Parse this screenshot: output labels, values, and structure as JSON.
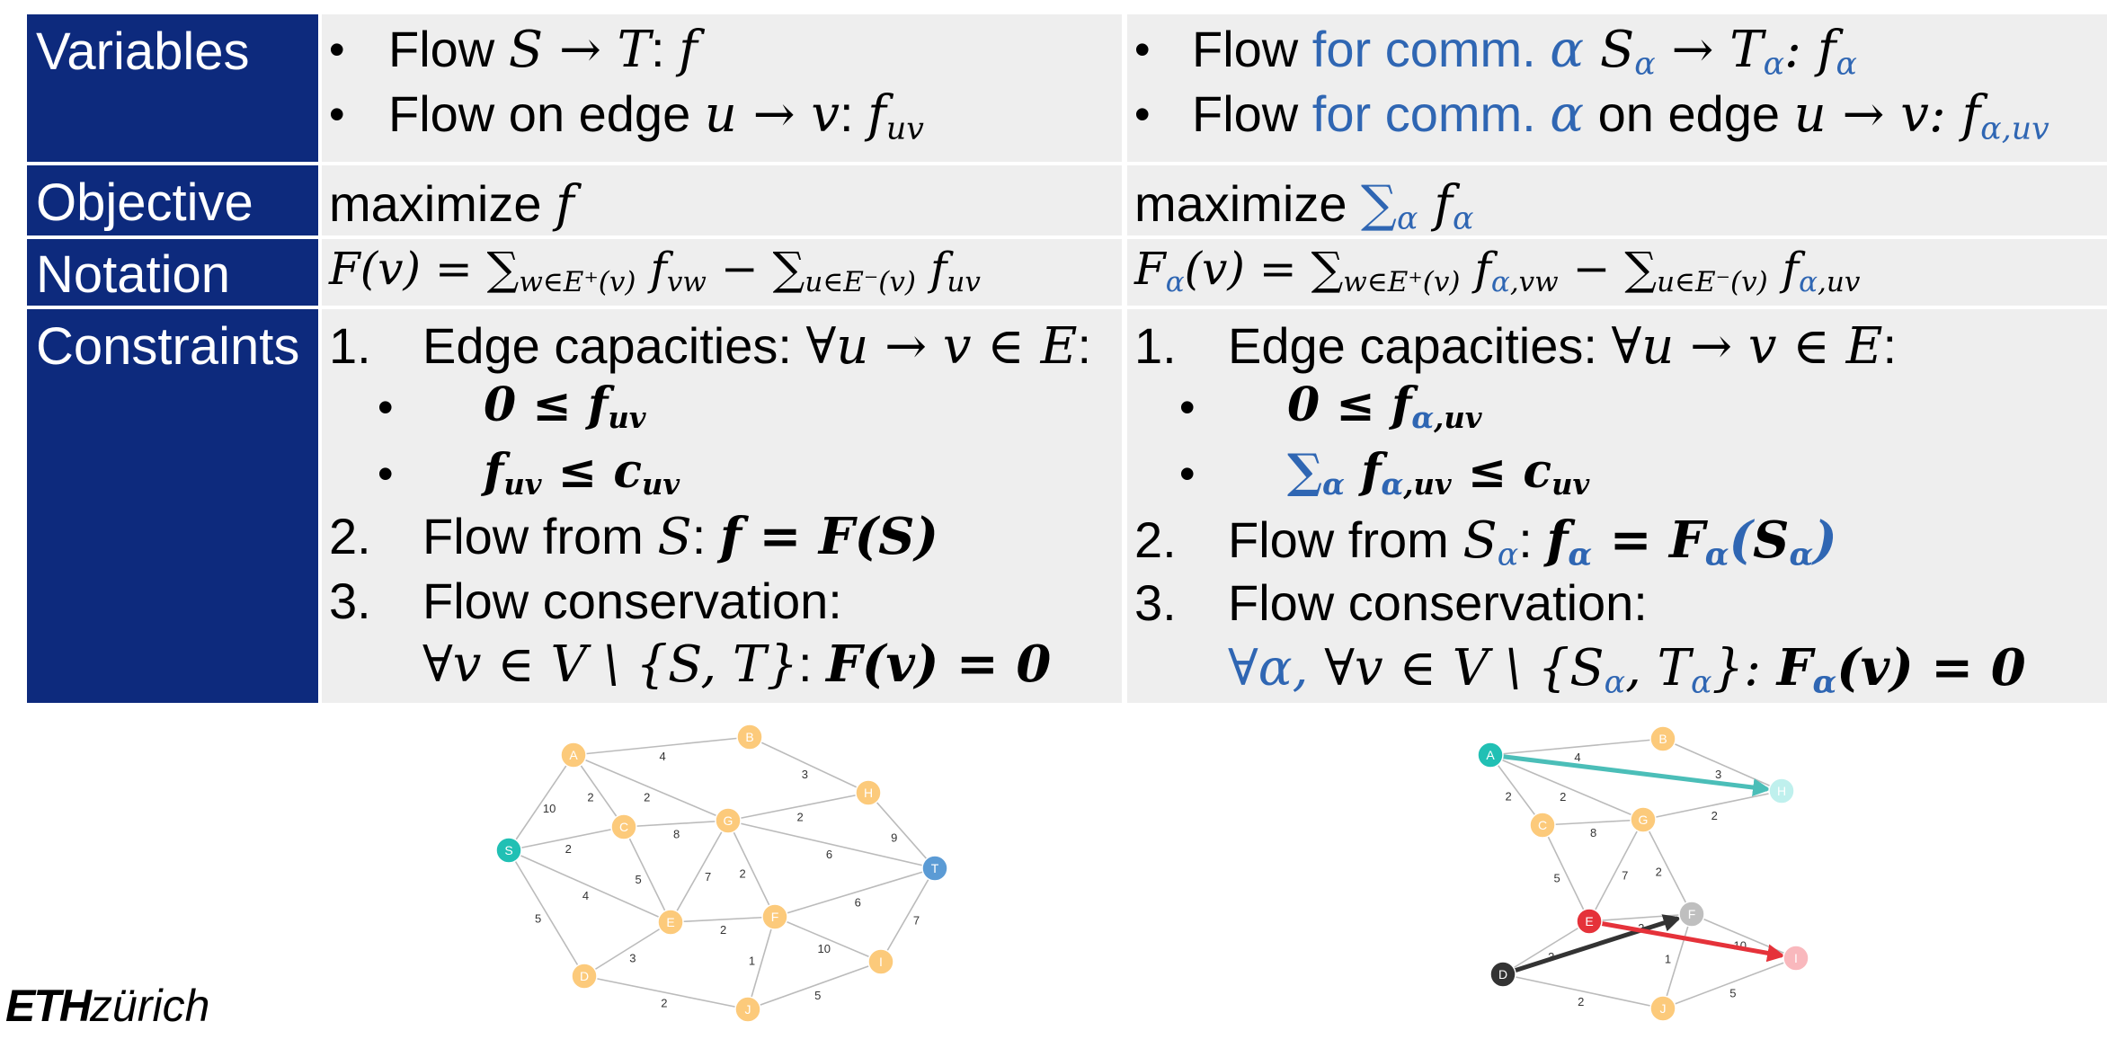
{
  "headers": {
    "variables": "Variables",
    "objective": "Objective",
    "notation": "Notation",
    "constraints": "Constraints"
  },
  "bullet": "•",
  "left": {
    "var1_text": "Flow ",
    "var1_math": "S → T",
    "var1_colon": ":  ",
    "var1_f": "f",
    "var2_text": "Flow on edge ",
    "var2_math": "u → v",
    "var2_colon": ":  ",
    "var2_f": "f",
    "var2_sub": "uv",
    "obj_text": "maximize ",
    "obj_f": "f",
    "notation": "F(v) = ∑",
    "notation_sub1": "w∈E⁺(v)",
    "notation_mid": " f",
    "notation_sub2": "vw",
    "notation_minus": " − ∑",
    "notation_sub3": "u∈E⁻(v)",
    "notation_f2": " f",
    "notation_sub4": "uv",
    "c1_num": "1.",
    "c1_text": "Edge capacities: ",
    "c1_math": "∀u → v ∈ E",
    "c1_colon": ":",
    "c1a": "0 ≤ f",
    "c1a_sub": "uv",
    "c1b_f": "f",
    "c1b_sub": "uv",
    "c1b_rest": " ≤ c",
    "c1b_sub2": "uv",
    "c2_num": "2.",
    "c2_text": "Flow from ",
    "c2_S": "S",
    "c2_colon": ": ",
    "c2_math": "f = F(S)",
    "c3_num": "3.",
    "c3_text": "Flow conservation:",
    "c3b_math": "∀v ∈ V \\ {S, T}",
    "c3b_colon": ": ",
    "c3b_bold": "F(v) = 0"
  },
  "right": {
    "var1_text": "Flow ",
    "var1_blue": "for comm. ",
    "var1_alpha": "α",
    "var1_S": "  S",
    "var1_sub_a": "α",
    "var1_arrow": " → T",
    "var1_sub_b": "α",
    "var1_colon": ":  f",
    "var1_sub_c": "α",
    "var2_text": "Flow ",
    "var2_blue": "for comm. ",
    "var2_alpha": "α",
    "var2_rest": " on edge ",
    "var2_math": "u → v",
    "var2_colon": ":  f",
    "var2_sub": "α,uv",
    "obj_text": "maximize ",
    "obj_sum": "∑",
    "obj_sum_sub": "α",
    "obj_f": " f",
    "obj_sub": "α",
    "notation_F": "F",
    "notation_Fsub": "α",
    "notation_rest": "(v) = ∑",
    "notation_sub1": "w∈E⁺(v)",
    "notation_f": " f",
    "notation_sub2a": "α",
    "notation_sub2b": ",vw",
    "notation_minus": " − ∑",
    "notation_sub3": "u∈E⁻(v)",
    "notation_f2": " f",
    "notation_sub4a": "α",
    "notation_sub4b": ",uv",
    "c1_num": "1.",
    "c1_text": "Edge capacities: ",
    "c1_math": "∀u → v ∈ E",
    "c1_colon": ":",
    "c1a": "0 ≤ f",
    "c1a_sub_a": "α",
    "c1a_sub_b": ",uv",
    "c1b_sum": "∑",
    "c1b_sum_sub": "α",
    "c1b_f": " f",
    "c1b_sub_a": "α",
    "c1b_sub_b": ",uv",
    "c1b_rest": " ≤ c",
    "c1b_sub2": "uv",
    "c2_num": "2.",
    "c2_text": "Flow from ",
    "c2_S": "S",
    "c2_Ssub": "α",
    "c2_colon": ": ",
    "c2_f": "f",
    "c2_fsub": "α",
    "c2_eq": " = F",
    "c2_Fsub": "α",
    "c2_paren": "(",
    "c2_S2": "S",
    "c2_S2sub": "α",
    "c2_close": ")",
    "c3_num": "3.",
    "c3_text": "Flow conservation:",
    "c3b_blue": "∀α, ",
    "c3b_math": "∀v ∈ V \\ {S",
    "c3b_sub1": "α",
    "c3b_mid": ", T",
    "c3b_sub2": "α",
    "c3b_end": "}: ",
    "c3b_F": "F",
    "c3b_Fsub": "α",
    "c3b_rest": "(v) = 0"
  },
  "logo": {
    "eth": "ETH",
    "zurich": "zürich"
  },
  "graph1": {
    "node_color": "#fcca7b",
    "source_color": "#21c0b4",
    "sink_color": "#5b9bd5",
    "nodes": [
      "A",
      "B",
      "C",
      "G",
      "H",
      "S",
      "T",
      "E",
      "F",
      "D",
      "I",
      "J"
    ],
    "edge_labels": [
      "4",
      "3",
      "2",
      "10",
      "2",
      "2",
      "8",
      "2",
      "9",
      "5",
      "6",
      "7",
      "2",
      "6",
      "4",
      "5",
      "3",
      "2",
      "1",
      "10",
      "7",
      "2",
      "5"
    ]
  },
  "graph2": {
    "node_color": "#fcca7b",
    "colors": {
      "A": "#21c0b4",
      "H": "#bff0ed",
      "E": "#e5323a",
      "I": "#f9b8bd",
      "D": "#333333",
      "F": "#bfbfbf"
    },
    "nodes": [
      "A",
      "B",
      "C",
      "G",
      "H",
      "E",
      "F",
      "D",
      "I",
      "J"
    ],
    "edge_labels": [
      "4",
      "3",
      "2",
      "2",
      "2",
      "8",
      "2",
      "5",
      "7",
      "2",
      "3",
      "2",
      "10",
      "1",
      "2",
      "5"
    ]
  }
}
